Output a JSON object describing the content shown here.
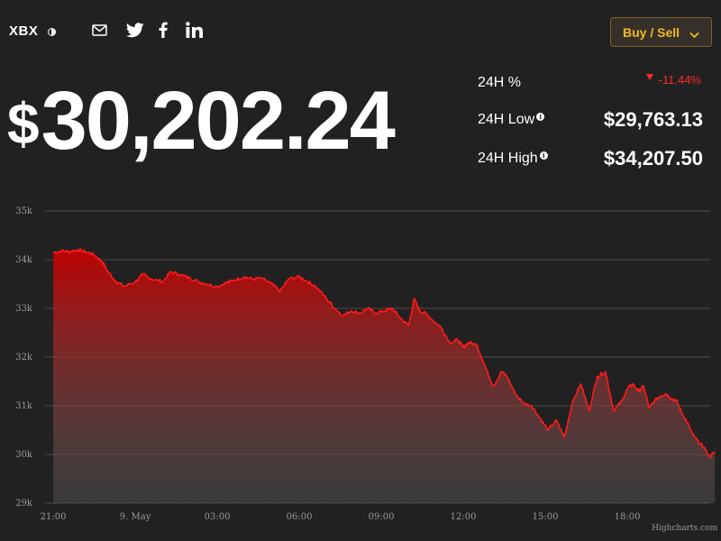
{
  "header": {
    "ticker": "XBX",
    "share_icons": [
      "mail-icon",
      "twitter-icon",
      "facebook-icon",
      "linkedin-icon"
    ],
    "buy_sell_label": "Buy / Sell"
  },
  "price": {
    "currency_symbol": "$",
    "value": "30,202.24"
  },
  "stats": {
    "change_label": "24H %",
    "change_value": "-11.44%",
    "low_label": "24H Low",
    "low_value": "$29,763.13",
    "high_label": "24H High",
    "high_value": "$34,207.50"
  },
  "colors": {
    "background": "#212121",
    "line": "#ff1a1a",
    "accent": "#f4b81f",
    "negative": "#ff2a2a"
  },
  "chart_data": {
    "type": "area",
    "title": "",
    "xlabel": "",
    "ylabel": "",
    "ylim": [
      29000,
      35000
    ],
    "yticks": [
      29000,
      30000,
      31000,
      32000,
      33000,
      34000,
      35000
    ],
    "ytick_labels": [
      "29k",
      "30k",
      "31k",
      "32k",
      "33k",
      "34k",
      "35k"
    ],
    "xtick_labels": [
      "21:00",
      "9. May",
      "03:00",
      "06:00",
      "09:00",
      "12:00",
      "15:00",
      "18:00"
    ],
    "xticks_hours": [
      0,
      3,
      6,
      9,
      12,
      15,
      18,
      21
    ],
    "xlim_hours": [
      -0.3,
      23.7
    ],
    "grid": true,
    "credit": "Highcharts.com",
    "series": [
      {
        "x_hours": [
          0,
          0.3,
          0.6,
          0.9,
          1.2,
          1.5,
          1.8,
          2.0,
          2.3,
          2.6,
          3.0,
          3.3,
          3.6,
          4.0,
          4.3,
          4.6,
          5.0,
          5.3,
          5.6,
          6.0,
          6.3,
          6.6,
          7.0,
          7.3,
          7.6,
          8.0,
          8.3,
          8.6,
          9.0,
          9.3,
          9.6,
          10.0,
          10.3,
          10.6,
          10.9,
          11.2,
          11.5,
          11.8,
          12.1,
          12.4,
          12.7,
          13.0,
          13.2,
          13.4,
          13.6,
          13.9,
          14.2,
          14.5,
          14.8,
          15.0,
          15.2,
          15.5,
          15.8,
          16.1,
          16.4,
          16.6,
          16.9,
          17.2,
          17.5,
          17.8,
          18.1,
          18.4,
          18.7,
          19.0,
          19.3,
          19.6,
          19.9,
          20.2,
          20.5,
          20.8,
          21.0,
          21.2,
          21.4,
          21.6,
          21.8,
          22.0,
          22.2,
          22.4,
          22.6,
          22.8,
          23.0,
          23.2,
          23.4,
          23.6,
          23.8,
          24.0,
          24.2
        ],
        "values": [
          34150,
          34180,
          34170,
          34200,
          34160,
          34100,
          33950,
          33750,
          33550,
          33450,
          33550,
          33700,
          33600,
          33550,
          33750,
          33700,
          33620,
          33550,
          33500,
          33450,
          33520,
          33580,
          33650,
          33600,
          33620,
          33500,
          33350,
          33600,
          33650,
          33550,
          33450,
          33200,
          33000,
          32850,
          32950,
          32900,
          33000,
          32900,
          32950,
          33000,
          32800,
          32650,
          33200,
          32950,
          32900,
          32750,
          32600,
          32300,
          32350,
          32200,
          32300,
          32250,
          31800,
          31400,
          31700,
          31600,
          31250,
          31050,
          31000,
          30750,
          30500,
          30700,
          30350,
          31100,
          31450,
          30900,
          31600,
          31700,
          30900,
          31100,
          31350,
          31450,
          31300,
          31400,
          30950,
          31100,
          31200,
          31250,
          31150,
          31100,
          30850,
          30650,
          30400,
          30250,
          30150,
          29950,
          30050
        ]
      }
    ]
  }
}
